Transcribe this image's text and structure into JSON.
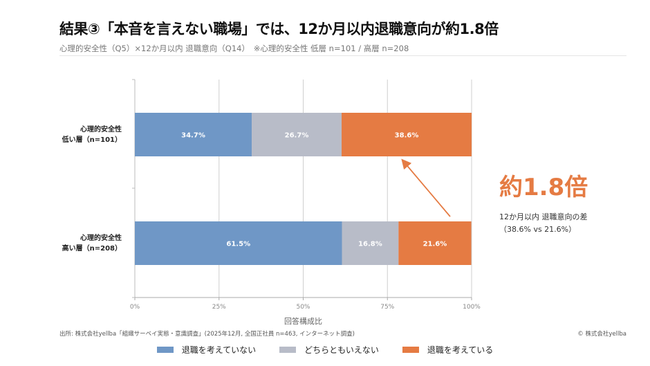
{
  "header": {
    "title": "結果③「本音を言えない職場」では、12か月以内退職意向が約1.8倍",
    "subtitle": "心理的安全性（Q5）×12か月以内 退職意向（Q14）　※心理的安全性 低層 n=101 / 高層 n=208"
  },
  "chart_data": {
    "type": "bar",
    "orientation": "horizontal",
    "stacked": true,
    "categories": [
      "心理的安全性\n低い層（n=101）",
      "心理的安全性\n高い層（n=208）"
    ],
    "category_lines": [
      [
        "心理的安全性",
        "低い層（n=101）"
      ],
      [
        "心理的安全性",
        "高い層（n=208）"
      ]
    ],
    "series": [
      {
        "name": "退職を考えていない",
        "values": [
          34.7,
          61.5
        ],
        "labels": [
          "34.7%",
          "61.5%"
        ],
        "color": "#6F97C6"
      },
      {
        "name": "どちらともいえない",
        "values": [
          26.7,
          16.8
        ],
        "labels": [
          "26.7%",
          "16.8%"
        ],
        "color": "#B8BCC8"
      },
      {
        "name": "退職を考えている",
        "values": [
          38.6,
          21.6
        ],
        "labels": [
          "38.6%",
          "21.6%"
        ],
        "color": "#E57B43"
      }
    ],
    "xlabel": "回答構成比",
    "xlim": [
      0,
      100
    ],
    "xticks": [
      0,
      25,
      50,
      75,
      100
    ],
    "xtick_labels": [
      "0%",
      "25%",
      "50%",
      "75%",
      "100%"
    ],
    "grid": true,
    "legend_position": "bottom",
    "annotation": {
      "headline": "約1.8倍",
      "line1": "12か月以内 退職意向の差",
      "line2": "（38.6% vs 21.6%）",
      "color": "#E57B43"
    }
  },
  "footer": {
    "source": "出所: 株式会社yellba「組織サーベイ実態・意識調査」(2025年12月, 全国正社員 n=463, インターネット調査)",
    "copyright": "© 株式会社yellba"
  }
}
